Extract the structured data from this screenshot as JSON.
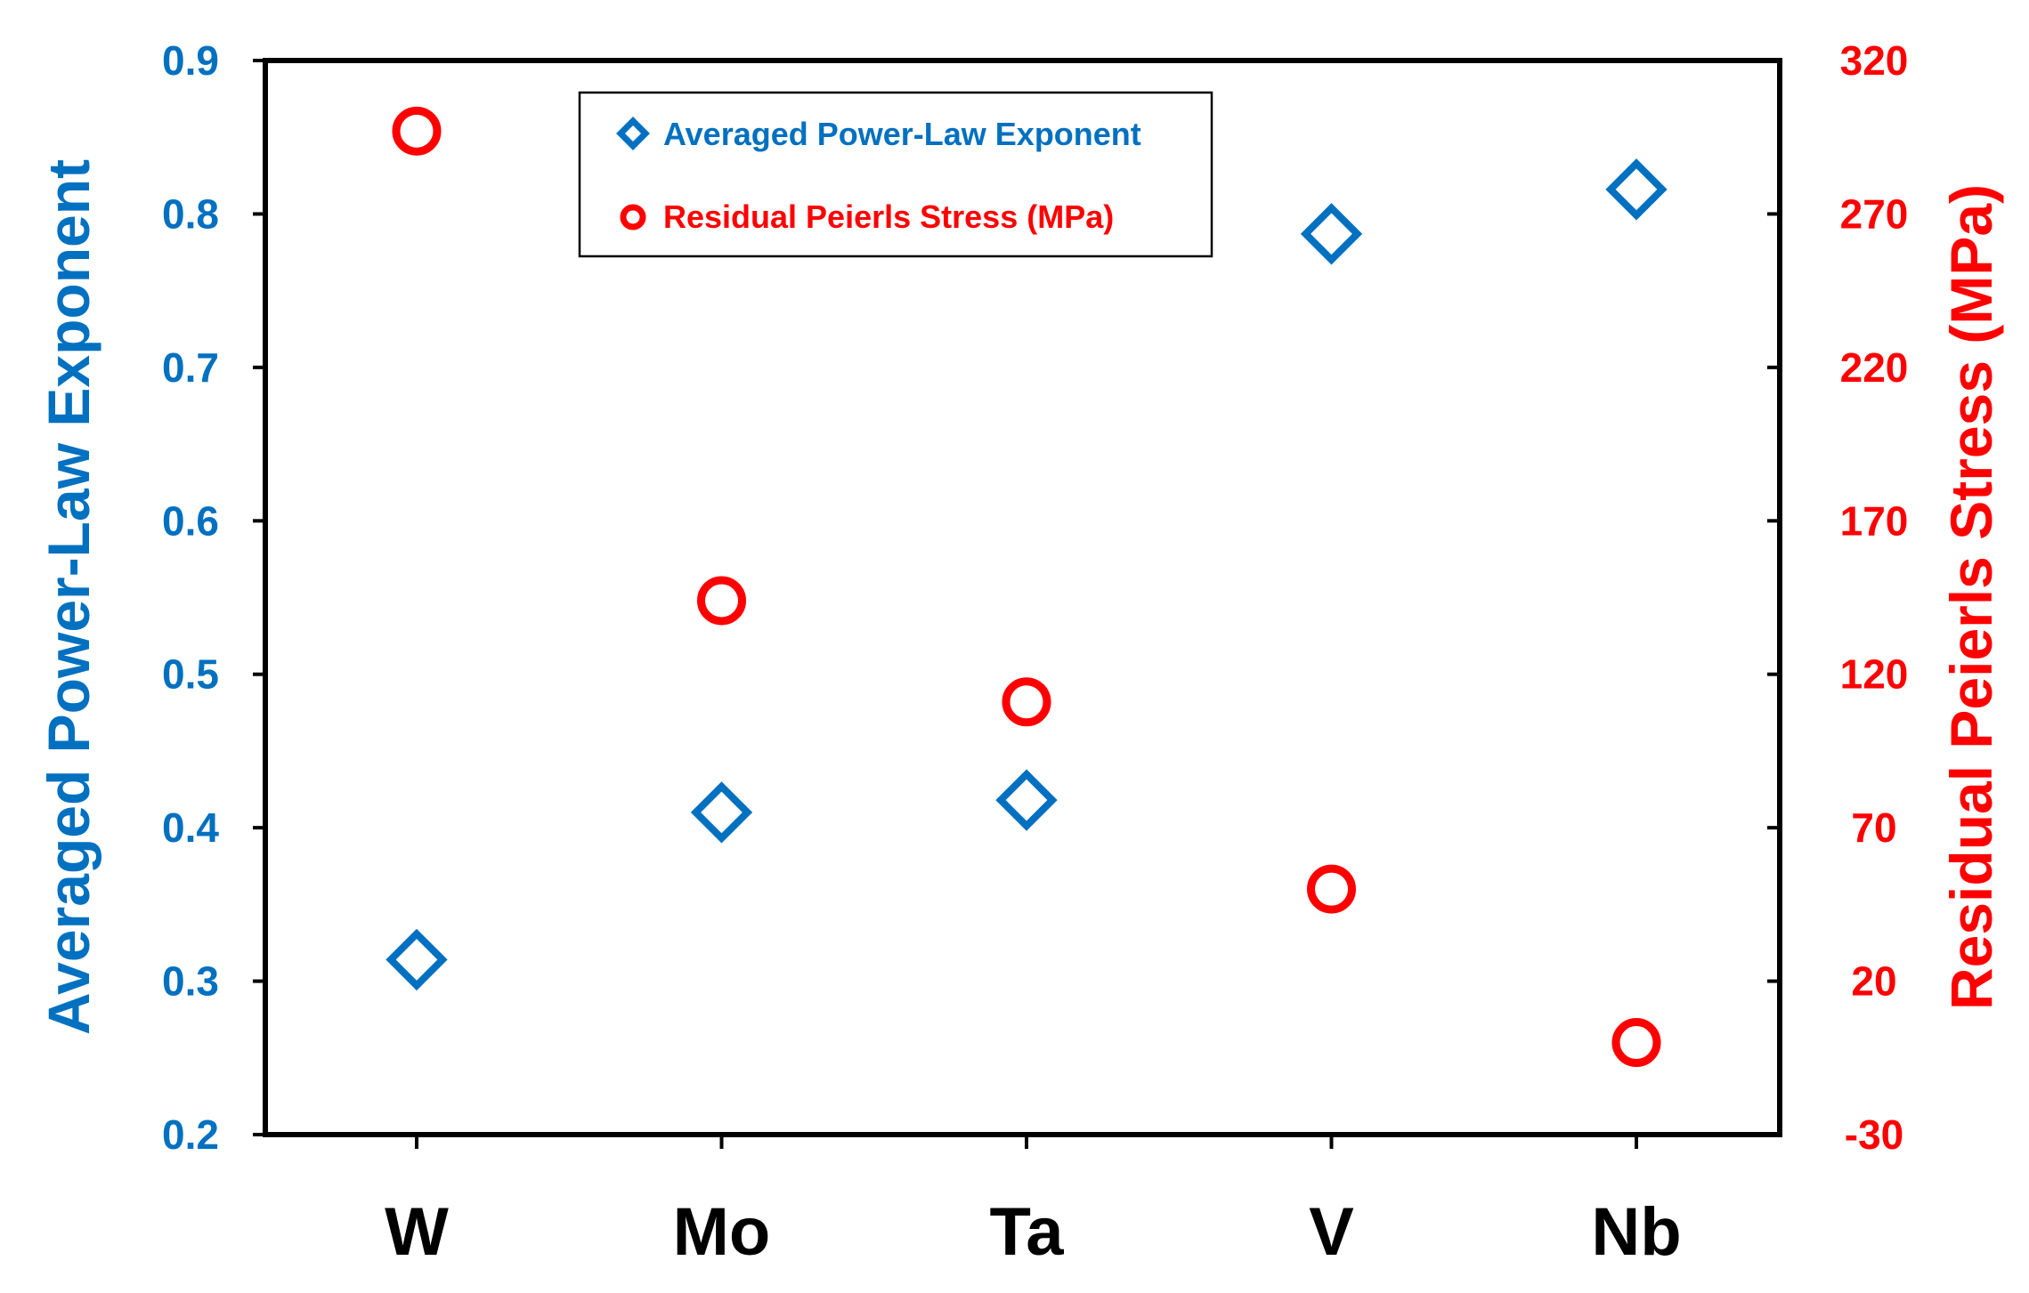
{
  "chart_data": {
    "type": "scatter",
    "categories": [
      "W",
      "Mo",
      "Ta",
      "V",
      "Nb"
    ],
    "series": [
      {
        "name": "Averaged Power-Law Exponent",
        "axis": "left",
        "marker": "diamond",
        "color": "#0070C0",
        "values": [
          0.314,
          0.41,
          0.418,
          0.787,
          0.816
        ]
      },
      {
        "name": "Residual Peierls Stress (MPa)",
        "axis": "right",
        "marker": "circle",
        "color": "#FF0000",
        "values": [
          297,
          144,
          111,
          50,
          0
        ]
      }
    ],
    "ylabel_left": "Averaged Power-Law Exponent",
    "ylabel_right": "Residual Peierls Stress (MPa)",
    "ylim_left": [
      0.2,
      0.9
    ],
    "ylim_right": [
      -30,
      320
    ],
    "yticks_left": [
      "0.2",
      "0.3",
      "0.4",
      "0.5",
      "0.6",
      "0.7",
      "0.8",
      "0.9"
    ],
    "yticks_right": [
      "-30",
      "20",
      "70",
      "120",
      "170",
      "220",
      "270",
      "320"
    ],
    "legend_position": "top-center",
    "grid": false
  }
}
